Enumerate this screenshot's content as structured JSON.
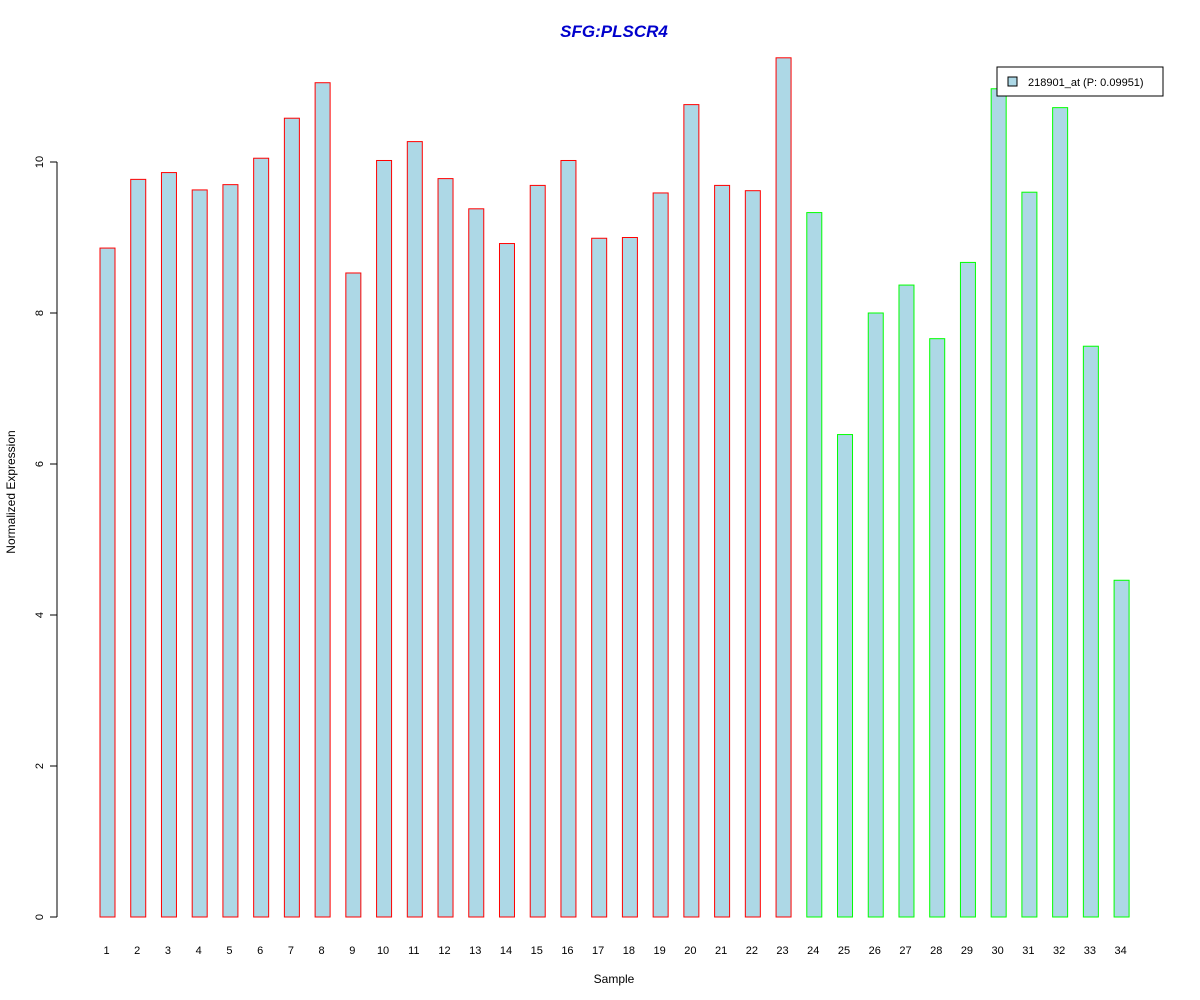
{
  "chart_data": {
    "type": "bar",
    "title": "SFG:PLSCR4",
    "xlabel": "Sample",
    "ylabel": "Normalized Expression",
    "ylim": [
      0,
      11.4
    ],
    "yticks": [
      0,
      2,
      4,
      6,
      8,
      10
    ],
    "categories": [
      "1",
      "2",
      "3",
      "4",
      "5",
      "6",
      "7",
      "8",
      "9",
      "10",
      "11",
      "12",
      "13",
      "14",
      "15",
      "16",
      "17",
      "18",
      "19",
      "20",
      "21",
      "22",
      "23",
      "24",
      "25",
      "26",
      "27",
      "28",
      "29",
      "30",
      "31",
      "32",
      "33",
      "34"
    ],
    "series": [
      {
        "name": "218901_at (P: 0.09951)",
        "values": [
          8.86,
          9.77,
          9.86,
          9.63,
          9.7,
          10.05,
          10.58,
          11.05,
          8.53,
          10.02,
          10.27,
          9.78,
          9.38,
          8.92,
          9.69,
          10.02,
          8.99,
          9.0,
          9.59,
          10.76,
          9.69,
          9.62,
          11.38,
          9.33,
          6.39,
          8.0,
          8.37,
          7.66,
          8.67,
          10.97,
          9.6,
          10.72,
          7.56,
          4.46
        ],
        "fill_color": "#add8e6",
        "border_colors_by_group": [
          "#ff0000",
          "#00ff00"
        ],
        "group_sizes": [
          23,
          11
        ]
      }
    ],
    "title_color": "#0000cc",
    "grid": false,
    "legend_position": "top-right"
  }
}
